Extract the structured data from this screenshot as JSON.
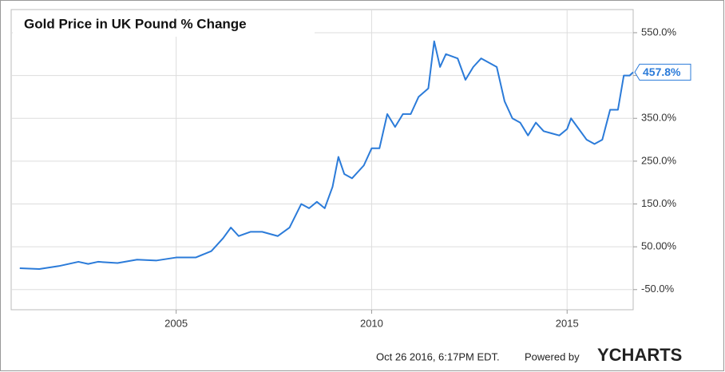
{
  "chart_data": {
    "type": "line",
    "title": "Gold Price in UK Pound % Change",
    "x": [
      2001.0,
      2001.5,
      2002.0,
      2002.5,
      2002.75,
      2003.0,
      2003.5,
      2004.0,
      2004.5,
      2005.0,
      2005.5,
      2005.9,
      2006.2,
      2006.4,
      2006.6,
      2006.9,
      2007.2,
      2007.6,
      2007.9,
      2008.2,
      2008.4,
      2008.6,
      2008.8,
      2009.0,
      2009.15,
      2009.3,
      2009.5,
      2009.8,
      2010.0,
      2010.2,
      2010.4,
      2010.6,
      2010.8,
      2011.0,
      2011.2,
      2011.45,
      2011.6,
      2011.75,
      2011.9,
      2012.2,
      2012.4,
      2012.6,
      2012.8,
      2013.0,
      2013.2,
      2013.4,
      2013.6,
      2013.8,
      2014.0,
      2014.2,
      2014.4,
      2014.6,
      2014.8,
      2015.0,
      2015.1,
      2015.3,
      2015.5,
      2015.7,
      2015.9,
      2016.1,
      2016.3,
      2016.45,
      2016.6,
      2016.69
    ],
    "series": [
      {
        "name": "Gold Price in UK Pound % Change",
        "color": "#2b7bd9",
        "values": [
          0,
          -2,
          5,
          15,
          10,
          15,
          12,
          20,
          18,
          25,
          25,
          40,
          70,
          95,
          75,
          85,
          85,
          75,
          95,
          150,
          140,
          155,
          140,
          190,
          260,
          220,
          210,
          240,
          280,
          280,
          360,
          330,
          360,
          360,
          400,
          420,
          530,
          470,
          500,
          490,
          440,
          470,
          490,
          480,
          470,
          390,
          350,
          340,
          310,
          340,
          320,
          315,
          310,
          325,
          350,
          325,
          300,
          290,
          300,
          370,
          370,
          450,
          450,
          457.8
        ]
      }
    ],
    "xlim": [
      2000.78,
      2016.69
    ],
    "xticks": [
      2005,
      2010,
      2015
    ],
    "ylim": [
      -97,
      604
    ],
    "yticks": [
      {
        "value": -50,
        "label": "-50.0%"
      },
      {
        "value": 50,
        "label": "50.00%"
      },
      {
        "value": 150,
        "label": "150.0%"
      },
      {
        "value": 250,
        "label": "250.0%"
      },
      {
        "value": 350,
        "label": "350.0%"
      },
      {
        "value": 450,
        "label": null
      },
      {
        "value": 550,
        "label": "550.0%"
      }
    ],
    "grid": true,
    "last_value": 457.8,
    "last_value_label": "457.8%",
    "footer": {
      "timestamp": "Oct 26 2016, 6:17PM EDT.",
      "powered_by": "Powered by",
      "brand": "YCHARTS"
    }
  }
}
